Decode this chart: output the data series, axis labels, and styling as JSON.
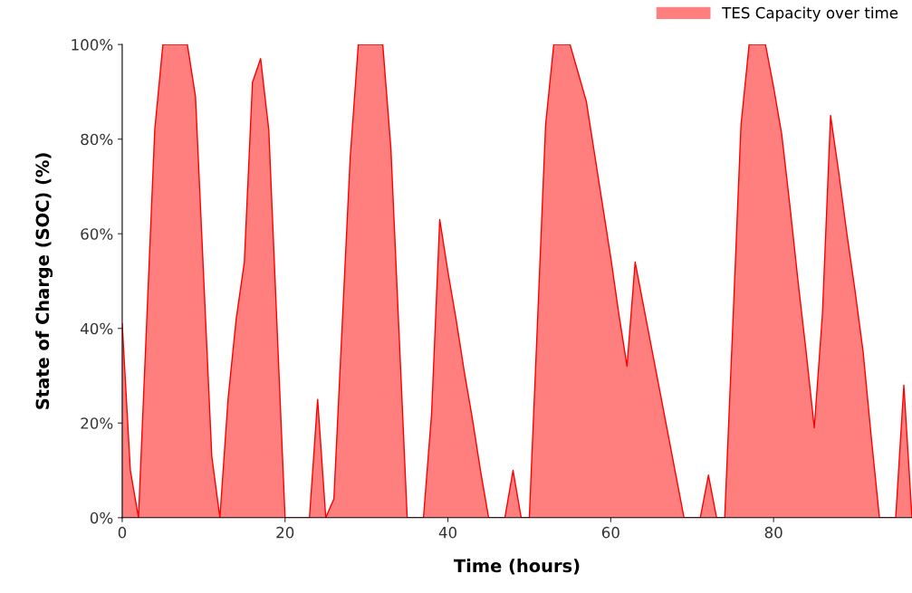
{
  "chart_data": {
    "type": "area",
    "xlabel": "Time (hours)",
    "ylabel": "State of Charge (SOC) (%)",
    "x": [
      0,
      1,
      2,
      3,
      4,
      5,
      6,
      7,
      8,
      9,
      10,
      11,
      12,
      13,
      14,
      15,
      16,
      17,
      18,
      19,
      20,
      21,
      22,
      23,
      24,
      25,
      26,
      27,
      28,
      29,
      30,
      31,
      32,
      33,
      34,
      35,
      36,
      37,
      38,
      39,
      40,
      41,
      42,
      43,
      44,
      45,
      46,
      47,
      48,
      49,
      50,
      51,
      52,
      53,
      54,
      55,
      56,
      57,
      58,
      59,
      60,
      61,
      62,
      63,
      64,
      65,
      66,
      67,
      68,
      69,
      70,
      71,
      72,
      73,
      74,
      75,
      76,
      77,
      78,
      79,
      80,
      81,
      82,
      83,
      84,
      85,
      86,
      87,
      88,
      89,
      90,
      91,
      92,
      93,
      94,
      95,
      96,
      97
    ],
    "series": [
      {
        "name": "TES Capacity over time",
        "color": "#ff0000",
        "values": [
          41,
          10,
          0,
          41,
          82,
          100,
          100,
          100,
          100,
          89,
          51,
          13,
          0,
          25,
          42,
          54,
          92,
          97,
          82,
          41,
          0,
          0,
          0,
          0,
          25,
          0,
          4,
          40,
          76,
          100,
          100,
          100,
          100,
          78,
          39,
          0,
          0,
          0,
          22,
          63,
          52,
          42,
          31,
          21,
          10,
          0,
          0,
          0,
          10,
          0,
          0,
          41,
          83,
          100,
          100,
          100,
          94,
          88,
          77,
          66,
          55,
          43,
          32,
          54,
          45,
          36,
          27,
          18,
          9,
          0,
          0,
          0,
          9,
          0,
          0,
          41,
          83,
          100,
          100,
          100,
          91,
          81,
          66,
          50,
          35,
          19,
          43,
          85,
          73,
          60,
          48,
          35,
          17,
          0,
          0,
          0,
          28,
          0
        ]
      }
    ],
    "xlim": [
      0,
      97
    ],
    "xticks": [
      0,
      20,
      40,
      60,
      80
    ],
    "ylim": [
      0,
      100
    ],
    "yticks": [
      {
        "value": 0,
        "label": "0%"
      },
      {
        "value": 20,
        "label": "20%"
      },
      {
        "value": 40,
        "label": "40%"
      },
      {
        "value": 60,
        "label": "60%"
      },
      {
        "value": 80,
        "label": "80%"
      },
      {
        "value": 100,
        "label": "100%"
      }
    ],
    "grid": false,
    "legend": "top right"
  }
}
